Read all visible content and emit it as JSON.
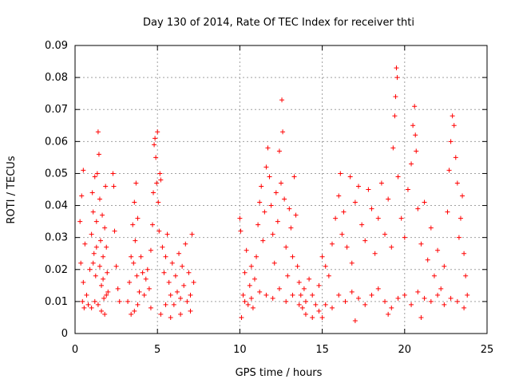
{
  "chart_data": {
    "type": "scatter",
    "title": "Day 130 of 2014, Rate Of TEC Index for receiver thti",
    "xlabel": "GPS time / hours",
    "ylabel": "ROTI / TECUs",
    "xlim": [
      0,
      25
    ],
    "ylim": [
      0,
      0.09
    ],
    "xticks": [
      {
        "value": 0,
        "label": "0"
      },
      {
        "value": 5,
        "label": "5"
      },
      {
        "value": 10,
        "label": "10"
      },
      {
        "value": 15,
        "label": "15"
      },
      {
        "value": 20,
        "label": "20"
      },
      {
        "value": 25,
        "label": "25"
      }
    ],
    "yticks": [
      {
        "value": 0,
        "label": "0"
      },
      {
        "value": 0.01,
        "label": "0.01"
      },
      {
        "value": 0.02,
        "label": "0.02"
      },
      {
        "value": 0.03,
        "label": "0.03"
      },
      {
        "value": 0.04,
        "label": "0.04"
      },
      {
        "value": 0.05,
        "label": "0.05"
      },
      {
        "value": 0.06,
        "label": "0.06"
      },
      {
        "value": 0.07,
        "label": "0.07"
      },
      {
        "value": 0.08,
        "label": "0.08"
      },
      {
        "value": 0.09,
        "label": "0.09"
      }
    ],
    "grid": true,
    "marker": "+",
    "color": "#ff0000",
    "series": [
      {
        "name": "ROTI",
        "points": [
          [
            0.3,
            0.035
          ],
          [
            0.4,
            0.043
          ],
          [
            0.5,
            0.051
          ],
          [
            0.6,
            0.028
          ],
          [
            0.7,
            0.012
          ],
          [
            0.8,
            0.009
          ],
          [
            0.5,
            0.016
          ],
          [
            0.35,
            0.022
          ],
          [
            0.45,
            0.01
          ],
          [
            0.55,
            0.008
          ],
          [
            0.9,
            0.02
          ],
          [
            1.0,
            0.031
          ],
          [
            1.05,
            0.044
          ],
          [
            1.1,
            0.038
          ],
          [
            1.15,
            0.025
          ],
          [
            1.2,
            0.049
          ],
          [
            1.25,
            0.018
          ],
          [
            1.3,
            0.035
          ],
          [
            1.35,
            0.05
          ],
          [
            1.4,
            0.063
          ],
          [
            1.45,
            0.056
          ],
          [
            1.5,
            0.042
          ],
          [
            1.55,
            0.029
          ],
          [
            1.6,
            0.015
          ],
          [
            1.65,
            0.037
          ],
          [
            1.7,
            0.024
          ],
          [
            1.75,
            0.011
          ],
          [
            1.8,
            0.033
          ],
          [
            1.85,
            0.046
          ],
          [
            1.9,
            0.027
          ],
          [
            1.95,
            0.019
          ],
          [
            2.0,
            0.013
          ],
          [
            1.0,
            0.008
          ],
          [
            1.2,
            0.01
          ],
          [
            1.4,
            0.009
          ],
          [
            1.6,
            0.007
          ],
          [
            1.8,
            0.006
          ],
          [
            1.1,
            0.022
          ],
          [
            1.3,
            0.027
          ],
          [
            1.5,
            0.021
          ],
          [
            1.7,
            0.017
          ],
          [
            1.9,
            0.012
          ],
          [
            2.3,
            0.05
          ],
          [
            2.35,
            0.046
          ],
          [
            2.4,
            0.032
          ],
          [
            2.5,
            0.021
          ],
          [
            2.6,
            0.014
          ],
          [
            2.7,
            0.01
          ],
          [
            3.2,
            0.01
          ],
          [
            3.3,
            0.016
          ],
          [
            3.4,
            0.024
          ],
          [
            3.5,
            0.034
          ],
          [
            3.55,
            0.022
          ],
          [
            3.6,
            0.041
          ],
          [
            3.65,
            0.029
          ],
          [
            3.7,
            0.047
          ],
          [
            3.75,
            0.018
          ],
          [
            3.8,
            0.036
          ],
          [
            3.9,
            0.013
          ],
          [
            4.0,
            0.024
          ],
          [
            4.1,
            0.019
          ],
          [
            4.2,
            0.012
          ],
          [
            3.4,
            0.006
          ],
          [
            3.6,
            0.007
          ],
          [
            3.8,
            0.009
          ],
          [
            4.3,
            0.017
          ],
          [
            4.4,
            0.02
          ],
          [
            4.5,
            0.014
          ],
          [
            4.6,
            0.026
          ],
          [
            4.7,
            0.034
          ],
          [
            4.75,
            0.044
          ],
          [
            4.8,
            0.059
          ],
          [
            4.85,
            0.061
          ],
          [
            4.9,
            0.055
          ],
          [
            4.95,
            0.047
          ],
          [
            5.0,
            0.063
          ],
          [
            5.05,
            0.041
          ],
          [
            5.1,
            0.032
          ],
          [
            5.15,
            0.05
          ],
          [
            5.2,
            0.048
          ],
          [
            5.3,
            0.027
          ],
          [
            5.4,
            0.019
          ],
          [
            5.5,
            0.024
          ],
          [
            5.6,
            0.031
          ],
          [
            5.7,
            0.016
          ],
          [
            5.8,
            0.012
          ],
          [
            5.9,
            0.022
          ],
          [
            6.0,
            0.009
          ],
          [
            6.1,
            0.018
          ],
          [
            6.2,
            0.013
          ],
          [
            6.3,
            0.025
          ],
          [
            6.4,
            0.011
          ],
          [
            6.5,
            0.021
          ],
          [
            6.6,
            0.015
          ],
          [
            6.7,
            0.028
          ],
          [
            6.8,
            0.01
          ],
          [
            6.9,
            0.019
          ],
          [
            7.0,
            0.012
          ],
          [
            7.1,
            0.031
          ],
          [
            7.2,
            0.016
          ],
          [
            5.2,
            0.006
          ],
          [
            5.8,
            0.005
          ],
          [
            6.4,
            0.006
          ],
          [
            7.0,
            0.007
          ],
          [
            4.6,
            0.008
          ],
          [
            5.5,
            0.009
          ],
          [
            10.0,
            0.036
          ],
          [
            10.05,
            0.032
          ],
          [
            10.1,
            0.005
          ],
          [
            10.2,
            0.012
          ],
          [
            10.3,
            0.019
          ],
          [
            10.4,
            0.026
          ],
          [
            10.5,
            0.009
          ],
          [
            10.6,
            0.015
          ],
          [
            10.7,
            0.021
          ],
          [
            10.8,
            0.008
          ],
          [
            10.9,
            0.017
          ],
          [
            11.0,
            0.024
          ],
          [
            11.1,
            0.034
          ],
          [
            11.2,
            0.041
          ],
          [
            11.3,
            0.046
          ],
          [
            11.4,
            0.029
          ],
          [
            11.5,
            0.038
          ],
          [
            11.6,
            0.052
          ],
          [
            11.7,
            0.058
          ],
          [
            11.8,
            0.049
          ],
          [
            11.9,
            0.04
          ],
          [
            12.0,
            0.031
          ],
          [
            12.1,
            0.022
          ],
          [
            12.2,
            0.044
          ],
          [
            12.3,
            0.035
          ],
          [
            12.4,
            0.057
          ],
          [
            12.5,
            0.047
          ],
          [
            12.55,
            0.073
          ],
          [
            12.6,
            0.063
          ],
          [
            12.7,
            0.042
          ],
          [
            12.8,
            0.027
          ],
          [
            12.9,
            0.018
          ],
          [
            13.0,
            0.039
          ],
          [
            13.1,
            0.033
          ],
          [
            13.2,
            0.024
          ],
          [
            13.3,
            0.049
          ],
          [
            13.4,
            0.037
          ],
          [
            13.5,
            0.021
          ],
          [
            13.6,
            0.016
          ],
          [
            13.7,
            0.012
          ],
          [
            13.8,
            0.008
          ],
          [
            13.9,
            0.014
          ],
          [
            14.0,
            0.01
          ],
          [
            14.2,
            0.017
          ],
          [
            14.4,
            0.012
          ],
          [
            14.6,
            0.009
          ],
          [
            14.8,
            0.015
          ],
          [
            15.0,
            0.024
          ],
          [
            15.2,
            0.021
          ],
          [
            15.4,
            0.018
          ],
          [
            15.6,
            0.028
          ],
          [
            15.8,
            0.036
          ],
          [
            16.0,
            0.043
          ],
          [
            16.1,
            0.05
          ],
          [
            16.2,
            0.031
          ],
          [
            16.3,
            0.038
          ],
          [
            16.5,
            0.027
          ],
          [
            16.7,
            0.049
          ],
          [
            16.8,
            0.022
          ],
          [
            17.0,
            0.041
          ],
          [
            17.2,
            0.046
          ],
          [
            17.4,
            0.034
          ],
          [
            17.6,
            0.029
          ],
          [
            17.8,
            0.045
          ],
          [
            18.0,
            0.039
          ],
          [
            18.2,
            0.025
          ],
          [
            18.4,
            0.036
          ],
          [
            18.6,
            0.047
          ],
          [
            18.8,
            0.031
          ],
          [
            19.0,
            0.042
          ],
          [
            19.2,
            0.027
          ],
          [
            19.3,
            0.058
          ],
          [
            19.4,
            0.068
          ],
          [
            19.45,
            0.074
          ],
          [
            19.5,
            0.083
          ],
          [
            19.55,
            0.08
          ],
          [
            19.6,
            0.049
          ],
          [
            19.8,
            0.036
          ],
          [
            20.0,
            0.03
          ],
          [
            20.2,
            0.045
          ],
          [
            20.4,
            0.053
          ],
          [
            20.5,
            0.065
          ],
          [
            20.6,
            0.071
          ],
          [
            20.65,
            0.062
          ],
          [
            20.7,
            0.057
          ],
          [
            20.8,
            0.039
          ],
          [
            21.0,
            0.028
          ],
          [
            21.2,
            0.041
          ],
          [
            21.4,
            0.023
          ],
          [
            21.6,
            0.033
          ],
          [
            21.8,
            0.018
          ],
          [
            22.0,
            0.026
          ],
          [
            22.2,
            0.014
          ],
          [
            22.4,
            0.021
          ],
          [
            22.6,
            0.038
          ],
          [
            22.7,
            0.051
          ],
          [
            22.8,
            0.06
          ],
          [
            22.9,
            0.068
          ],
          [
            23.0,
            0.065
          ],
          [
            23.1,
            0.055
          ],
          [
            23.2,
            0.047
          ],
          [
            23.3,
            0.03
          ],
          [
            23.4,
            0.036
          ],
          [
            23.5,
            0.043
          ],
          [
            23.6,
            0.025
          ],
          [
            23.7,
            0.018
          ],
          [
            23.8,
            0.012
          ],
          [
            10.3,
            0.01
          ],
          [
            10.7,
            0.011
          ],
          [
            11.2,
            0.013
          ],
          [
            11.6,
            0.012
          ],
          [
            12.0,
            0.011
          ],
          [
            12.4,
            0.014
          ],
          [
            12.8,
            0.01
          ],
          [
            13.2,
            0.012
          ],
          [
            13.6,
            0.009
          ],
          [
            14.0,
            0.006
          ],
          [
            14.4,
            0.005
          ],
          [
            14.8,
            0.007
          ],
          [
            15.2,
            0.009
          ],
          [
            15.6,
            0.008
          ],
          [
            16.0,
            0.012
          ],
          [
            16.4,
            0.01
          ],
          [
            16.8,
            0.013
          ],
          [
            17.2,
            0.011
          ],
          [
            17.6,
            0.009
          ],
          [
            18.0,
            0.012
          ],
          [
            18.4,
            0.014
          ],
          [
            18.8,
            0.01
          ],
          [
            19.2,
            0.008
          ],
          [
            19.6,
            0.011
          ],
          [
            20.0,
            0.012
          ],
          [
            20.4,
            0.009
          ],
          [
            20.8,
            0.013
          ],
          [
            21.2,
            0.011
          ],
          [
            21.6,
            0.01
          ],
          [
            22.0,
            0.012
          ],
          [
            22.4,
            0.009
          ],
          [
            22.8,
            0.011
          ],
          [
            23.2,
            0.01
          ],
          [
            23.6,
            0.008
          ],
          [
            15.0,
            0.005
          ],
          [
            17.0,
            0.004
          ],
          [
            19.0,
            0.006
          ],
          [
            21.0,
            0.005
          ]
        ]
      }
    ]
  }
}
